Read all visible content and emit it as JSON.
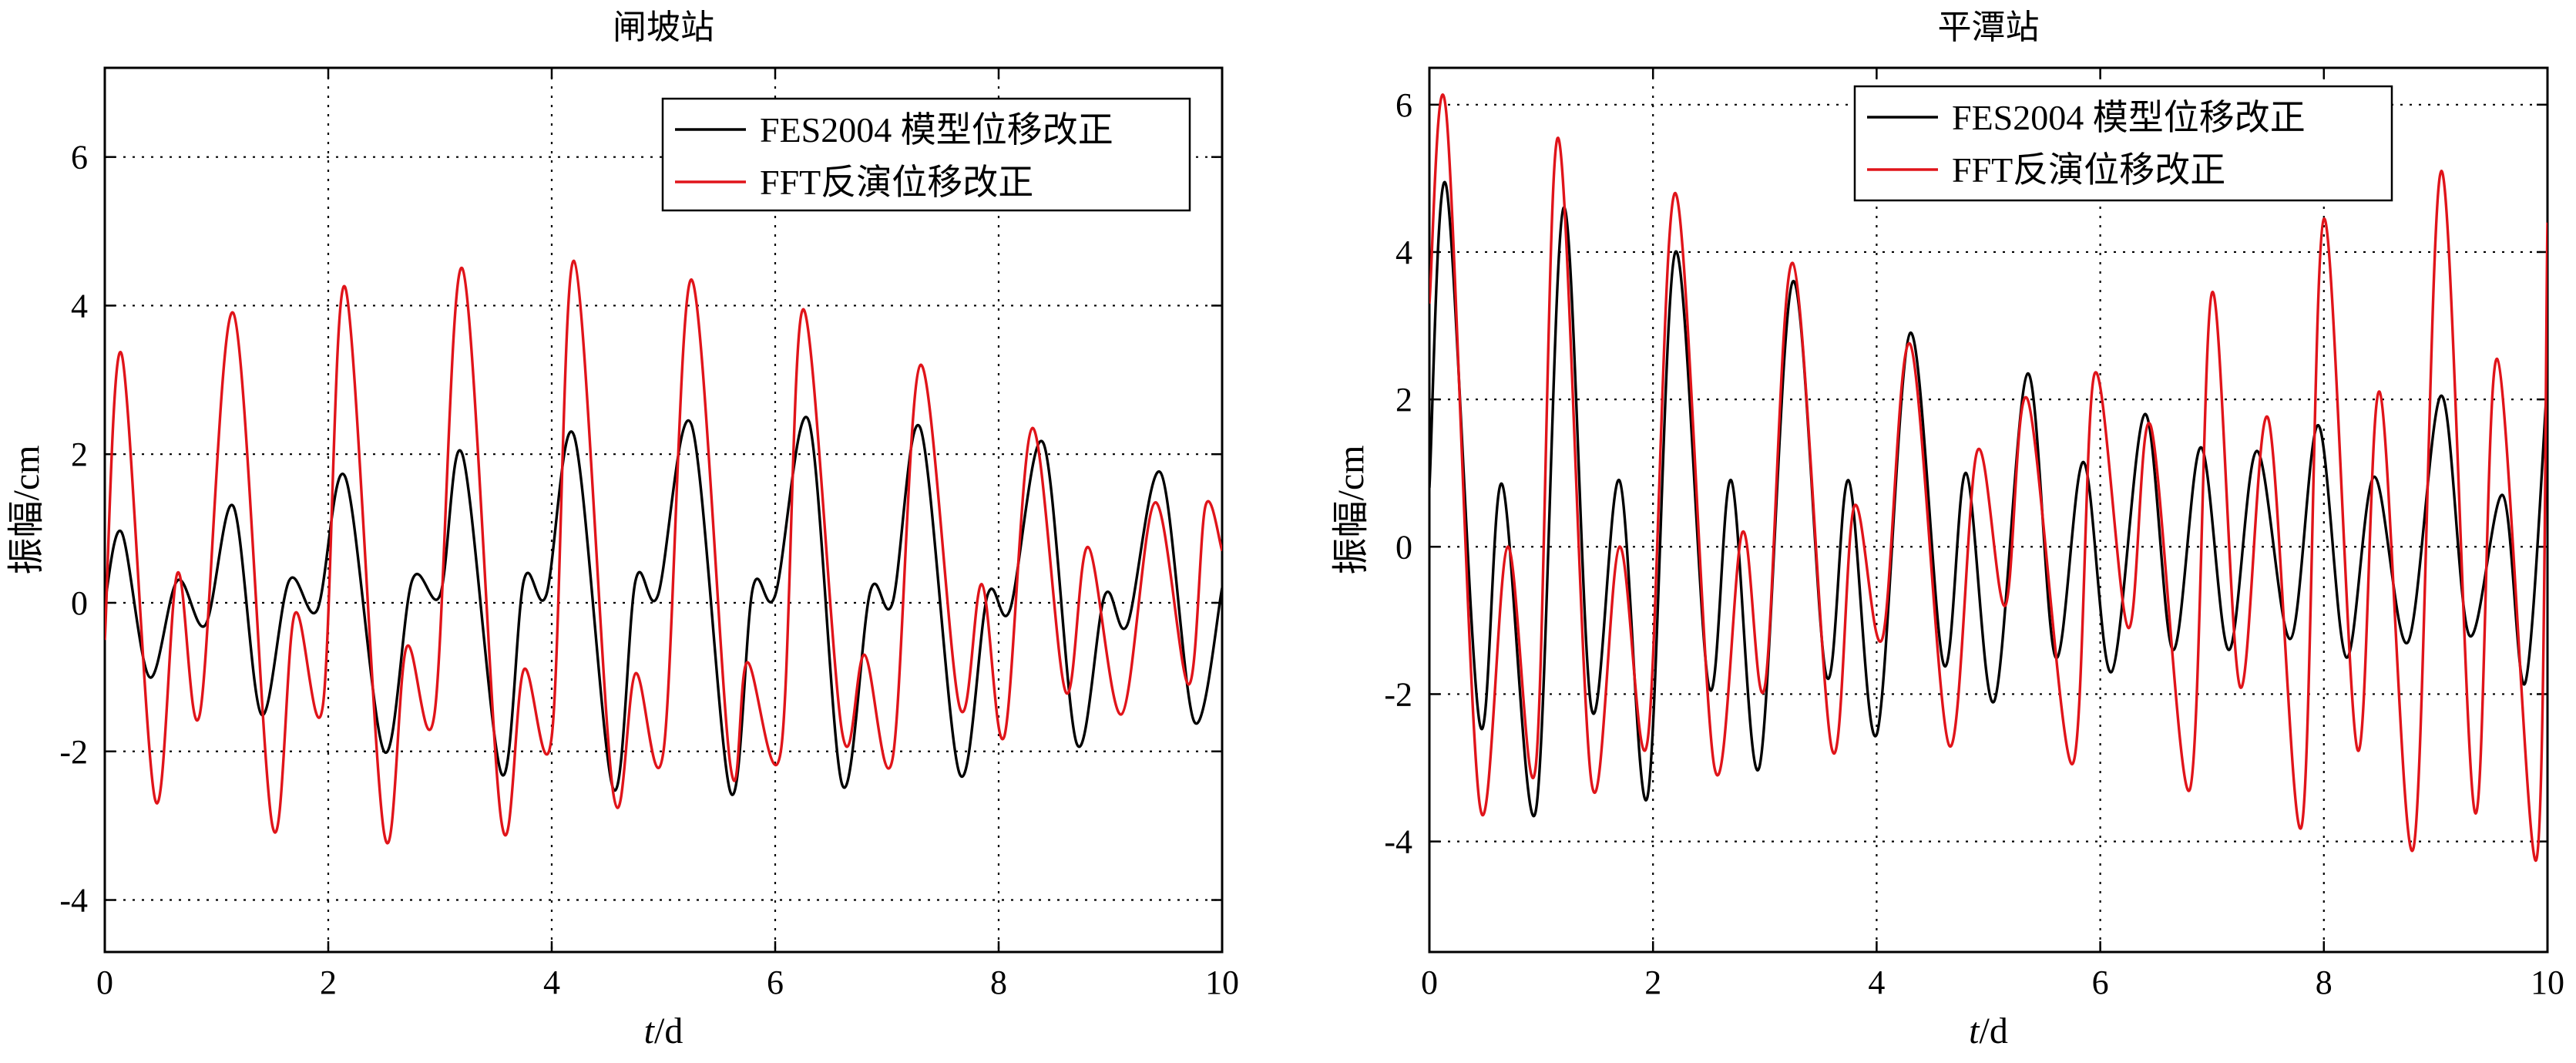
{
  "chart_data": [
    {
      "type": "line",
      "title": "闸坡站",
      "xlabel": {
        "italic": "t",
        "rest": "/d"
      },
      "ylabel": "振幅/cm",
      "xlim": [
        0,
        10
      ],
      "ylim": [
        -4.7,
        7.2
      ],
      "xticks": [
        "0",
        "2",
        "4",
        "6",
        "8",
        "10"
      ],
      "yticks": [
        "-4",
        "-2",
        "0",
        "2",
        "4",
        "6"
      ],
      "grid": true,
      "legend_position": "top-right",
      "series": [
        {
          "name": "FES2004 模型位移改正",
          "color": "#000000",
          "x": [
            0,
            0.15,
            0.4,
            0.65,
            0.9,
            1.15,
            1.4,
            1.65,
            1.9,
            2.15,
            2.5,
            2.75,
            3.0,
            3.2,
            3.55,
            3.75,
            3.95,
            4.2,
            4.55,
            4.75,
            4.95,
            5.25,
            5.6,
            5.8,
            6.0,
            6.3,
            6.6,
            6.85,
            7.05,
            7.3,
            7.65,
            7.9,
            8.1,
            8.4,
            8.7,
            8.95,
            9.15,
            9.45,
            9.75,
            10
          ],
          "y": [
            0,
            0.95,
            -1.0,
            0.3,
            -0.3,
            1.3,
            -1.5,
            0.3,
            -0.1,
            1.7,
            -2.0,
            0.3,
            0.1,
            2.0,
            -2.3,
            0.3,
            0.1,
            2.25,
            -2.5,
            0.3,
            0.1,
            2.4,
            -2.55,
            0.2,
            0.1,
            2.45,
            -2.45,
            0.15,
            0.0,
            2.35,
            -2.3,
            0.1,
            -0.1,
            2.15,
            -1.9,
            0.1,
            -0.3,
            1.75,
            -1.6,
            0.2
          ]
        },
        {
          "name": "FFT反演位移改正",
          "color": "#e0141a",
          "x": [
            0,
            0.15,
            0.45,
            0.65,
            0.85,
            1.15,
            1.5,
            1.7,
            1.95,
            2.15,
            2.5,
            2.7,
            2.95,
            3.2,
            3.55,
            3.75,
            4.0,
            4.2,
            4.55,
            4.75,
            5.0,
            5.25,
            5.6,
            5.75,
            6.05,
            6.25,
            6.6,
            6.8,
            7.05,
            7.3,
            7.65,
            7.85,
            8.05,
            8.3,
            8.6,
            8.8,
            9.1,
            9.4,
            9.7,
            9.85,
            10
          ],
          "y": [
            -0.5,
            3.35,
            -2.65,
            0.4,
            -1.5,
            3.9,
            -3.0,
            -0.15,
            -1.4,
            4.25,
            -3.1,
            -0.6,
            -1.5,
            4.5,
            -2.95,
            -0.9,
            -1.8,
            4.6,
            -2.55,
            -0.95,
            -2.0,
            4.35,
            -2.2,
            -0.8,
            -2.0,
            3.95,
            -1.75,
            -0.7,
            -2.1,
            3.2,
            -1.4,
            0.25,
            -1.8,
            2.35,
            -1.2,
            0.75,
            -1.5,
            1.35,
            -1.1,
            1.3,
            0.7
          ]
        }
      ]
    },
    {
      "type": "line",
      "title": "平潭站",
      "xlabel": {
        "italic": "t",
        "rest": "/d"
      },
      "ylabel": "振幅/cm",
      "xlim": [
        0,
        10
      ],
      "ylim": [
        -5.5,
        6.5
      ],
      "xticks": [
        "0",
        "2",
        "4",
        "6",
        "8",
        "10"
      ],
      "yticks": [
        "-4",
        "-2",
        "0",
        "2",
        "4",
        "6"
      ],
      "grid": true,
      "legend_position": "top-right",
      "series": [
        {
          "name": "FES2004 模型位移改正",
          "color": "#000000",
          "x": [
            0,
            0.15,
            0.45,
            0.65,
            0.95,
            1.2,
            1.45,
            1.7,
            1.95,
            2.2,
            2.5,
            2.7,
            2.95,
            3.25,
            3.55,
            3.75,
            4.0,
            4.3,
            4.6,
            4.8,
            5.05,
            5.35,
            5.6,
            5.85,
            6.1,
            6.4,
            6.65,
            6.9,
            7.15,
            7.4,
            7.7,
            7.95,
            8.2,
            8.45,
            8.75,
            9.05,
            9.3,
            9.6,
            9.8,
            10
          ],
          "y": [
            0.8,
            4.9,
            -2.4,
            0.85,
            -3.6,
            4.6,
            -2.2,
            0.9,
            -3.4,
            4.0,
            -1.9,
            0.9,
            -3.0,
            3.6,
            -1.75,
            0.9,
            -2.55,
            2.9,
            -1.6,
            1.0,
            -2.1,
            2.35,
            -1.5,
            1.15,
            -1.7,
            1.8,
            -1.4,
            1.35,
            -1.4,
            1.3,
            -1.25,
            1.65,
            -1.5,
            0.95,
            -1.3,
            2.05,
            -1.2,
            0.7,
            -1.85,
            2.3
          ]
        },
        {
          "name": "FFT反演位移改正",
          "color": "#e0141a",
          "x": [
            0,
            0.15,
            0.45,
            0.7,
            0.95,
            1.15,
            1.45,
            1.7,
            1.95,
            2.2,
            2.55,
            2.8,
            3.0,
            3.25,
            3.6,
            3.8,
            4.05,
            4.3,
            4.65,
            4.9,
            5.15,
            5.35,
            5.75,
            5.95,
            6.25,
            6.45,
            6.8,
            7.0,
            7.25,
            7.5,
            7.8,
            8.0,
            8.3,
            8.5,
            8.8,
            9.05,
            9.35,
            9.55,
            9.9,
            10
          ],
          "y": [
            3.3,
            5.9,
            -3.5,
            0.0,
            -3.0,
            5.55,
            -3.2,
            0.0,
            -2.65,
            4.8,
            -3.0,
            0.2,
            -1.9,
            3.85,
            -2.75,
            0.55,
            -1.25,
            2.75,
            -2.7,
            1.3,
            -0.8,
            2.0,
            -2.95,
            2.35,
            -1.1,
            1.65,
            -3.3,
            3.45,
            -1.9,
            1.75,
            -3.8,
            4.45,
            -2.75,
            2.1,
            -4.1,
            5.1,
            -3.6,
            2.55,
            -4.25,
            4.4
          ]
        }
      ]
    }
  ]
}
